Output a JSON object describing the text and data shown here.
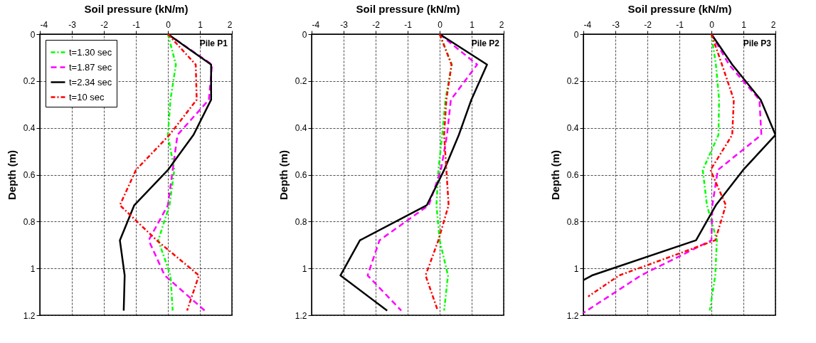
{
  "chart_data": [
    {
      "type": "line",
      "xlabel": "Soil pressure (kN/m)",
      "ylabel": "Depth (m)",
      "annotations": [
        "Pile P1"
      ],
      "xlim": [
        -4,
        2
      ],
      "xticks": [
        -4,
        -3,
        -2,
        -1,
        0,
        1,
        2
      ],
      "ylim": [
        1.2,
        0
      ],
      "yticks": [
        0,
        0.2,
        0.4,
        0.6,
        0.8,
        1,
        1.2
      ],
      "grid": true,
      "legend": "top left",
      "series": [
        {
          "name": "t=1.30 sec",
          "color": "#00ff00",
          "line_style": "dotted",
          "x": [
            0,
            0.25,
            0.08,
            0,
            0.2,
            0.05,
            -0.3,
            0.08,
            0.15
          ],
          "values": [
            0,
            0.13,
            0.28,
            0.43,
            0.58,
            0.73,
            0.88,
            1.03,
            1.18
          ]
        },
        {
          "name": "t=1.87 sec",
          "color": "#ff00ff",
          "line_style": "dashed",
          "x": [
            0,
            1.38,
            1.28,
            0.3,
            0.15,
            0,
            -0.6,
            -0.1,
            1.15
          ],
          "values": [
            0,
            0.13,
            0.28,
            0.43,
            0.58,
            0.73,
            0.88,
            1.03,
            1.18
          ]
        },
        {
          "name": "t=2.34 sec",
          "color": "#000000",
          "line_style": "solid",
          "x": [
            0,
            1.35,
            1.35,
            0.8,
            0,
            -1.05,
            -1.5,
            -1.35,
            -1.38
          ],
          "values": [
            0,
            0.13,
            0.28,
            0.43,
            0.58,
            0.73,
            0.88,
            1.03,
            1.18
          ]
        },
        {
          "name": "t=10 sec",
          "color": "#ff0000",
          "line_style": "dotted",
          "x": [
            0,
            0.87,
            0.9,
            0.05,
            -1,
            -1.5,
            -0.35,
            0.97,
            0.6
          ],
          "values": [
            0,
            0.13,
            0.28,
            0.43,
            0.58,
            0.73,
            0.88,
            1.03,
            1.18
          ]
        }
      ]
    },
    {
      "type": "line",
      "xlabel": "Soil pressure (kN/m)",
      "ylabel": "Depth (m)",
      "annotations": [
        "Pile P2"
      ],
      "xlim": [
        -4,
        2
      ],
      "xticks": [
        -4,
        -3,
        -2,
        -1,
        0,
        1,
        2
      ],
      "ylim": [
        1.2,
        0
      ],
      "yticks": [
        0,
        0.2,
        0.4,
        0.6,
        0.8,
        1,
        1.2
      ],
      "grid": true,
      "legend": "top left",
      "series": [
        {
          "name": "t=1.30 sec",
          "color": "#00ff00",
          "line_style": "dotted",
          "x": [
            0,
            0.38,
            0.18,
            0.08,
            -0.04,
            -0.1,
            0,
            0.26,
            0.14
          ],
          "values": [
            0,
            0.13,
            0.28,
            0.43,
            0.58,
            0.73,
            0.88,
            1.03,
            1.18
          ]
        },
        {
          "name": "t=1.87 sec",
          "color": "#ff00ff",
          "line_style": "dashed",
          "x": [
            0,
            1.17,
            0.35,
            0.23,
            0.04,
            -0.34,
            -1.88,
            -2.25,
            -1.2
          ],
          "values": [
            0,
            0.13,
            0.28,
            0.43,
            0.58,
            0.73,
            0.88,
            1.03,
            1.18
          ]
        },
        {
          "name": "t=2.34 sec",
          "color": "#000000",
          "line_style": "solid",
          "x": [
            0,
            1.48,
            0.99,
            0.6,
            0.14,
            -0.4,
            -2.49,
            -3.1,
            -1.64
          ],
          "values": [
            0,
            0.13,
            0.28,
            0.43,
            0.58,
            0.73,
            0.88,
            1.03,
            1.18
          ]
        },
        {
          "name": "t=10 sec",
          "color": "#ff0000",
          "line_style": "dotted",
          "x": [
            0,
            0.37,
            0.21,
            0.14,
            0.21,
            0.28,
            -0.04,
            -0.44,
            -0.06
          ],
          "values": [
            0,
            0.13,
            0.28,
            0.43,
            0.58,
            0.73,
            0.88,
            1.03,
            1.18
          ]
        }
      ]
    },
    {
      "type": "line",
      "xlabel": "Soil pressure (kN/m)",
      "ylabel": "Depth (m)",
      "annotations": [
        "Pile P3"
      ],
      "xlim": [
        -4,
        2
      ],
      "xticks": [
        -4,
        -3,
        -2,
        -1,
        0,
        1,
        2
      ],
      "ylim": [
        1.2,
        0
      ],
      "yticks": [
        0,
        0.2,
        0.4,
        0.6,
        0.8,
        1,
        1.2
      ],
      "grid": true,
      "legend": "top left",
      "series": [
        {
          "name": "t=1.30 sec",
          "color": "#00ff00",
          "line_style": "dotted",
          "x": [
            0,
            0.14,
            0.24,
            0.22,
            -0.27,
            -0.14,
            0.17,
            0.12,
            -0.05
          ],
          "values": [
            0,
            0.13,
            0.28,
            0.43,
            0.58,
            0.73,
            0.88,
            1.03,
            1.18
          ]
        },
        {
          "name": "t=1.87 sec",
          "color": "#ff00ff",
          "line_style": "dashed",
          "x": [
            0,
            0.55,
            1.5,
            1.56,
            0.2,
            0.03,
            0,
            -2.2,
            -4
          ],
          "values": [
            0,
            0.13,
            0.28,
            0.43,
            0.58,
            0.73,
            0.88,
            1.03,
            1.19
          ]
        },
        {
          "name": "t=2.34 sec",
          "color": "#000000",
          "line_style": "solid",
          "x": [
            0,
            0.65,
            1.54,
            2,
            0.99,
            0.14,
            -0.48,
            -3.73,
            -4
          ],
          "values": [
            0,
            0.13,
            0.28,
            0.43,
            0.58,
            0.73,
            0.88,
            1.03,
            1.05
          ]
        },
        {
          "name": "t=10 sec",
          "color": "#ff0000",
          "line_style": "dotted",
          "x": [
            0,
            0.33,
            0.7,
            0.65,
            -0.03,
            0.45,
            0.12,
            -2.88,
            -3.85
          ],
          "values": [
            0,
            0.13,
            0.28,
            0.43,
            0.58,
            0.73,
            0.88,
            1.03,
            1.12
          ]
        }
      ]
    }
  ]
}
